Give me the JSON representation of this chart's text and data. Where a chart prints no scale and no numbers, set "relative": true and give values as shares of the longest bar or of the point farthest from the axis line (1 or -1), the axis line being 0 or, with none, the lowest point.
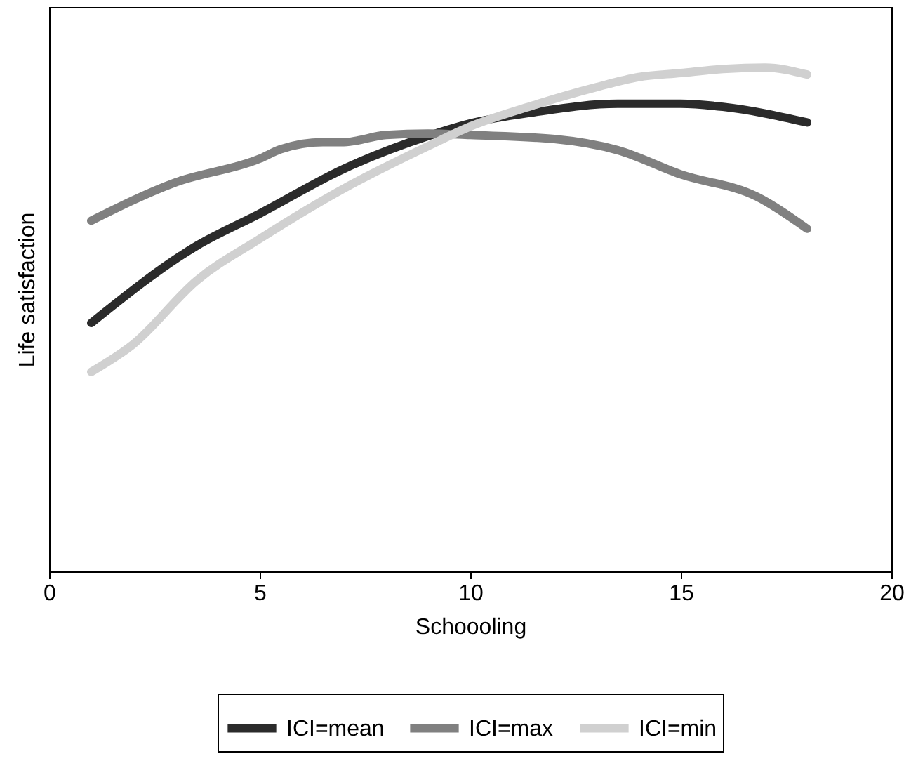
{
  "chart_data": {
    "type": "line",
    "xlabel": "Schoooling",
    "ylabel": "Life satisfaction",
    "relative": true,
    "xlim": [
      0,
      20
    ],
    "xticks": [
      0,
      5,
      10,
      15,
      20
    ],
    "grid": false,
    "legend": "bottom",
    "marker": "none",
    "line_style": "solid",
    "series": [
      {
        "name": "ICI=mean",
        "color": "#2b2b2b",
        "x": [
          1,
          3.5,
          5,
          7,
          9,
          10,
          11.5,
          13.5,
          15,
          16,
          18
        ],
        "values": [
          0.493,
          0.646,
          0.71,
          0.799,
          0.864,
          0.889,
          0.911,
          0.928,
          0.928,
          0.922,
          0.891
        ]
      },
      {
        "name": "ICI=max",
        "color": "#808080",
        "x": [
          1,
          3,
          5,
          5.5,
          6.5,
          7,
          8,
          9,
          10,
          12,
          13.5,
          15,
          16.8,
          18
        ],
        "values": [
          0.696,
          0.772,
          0.819,
          0.838,
          0.852,
          0.852,
          0.866,
          0.869,
          0.866,
          0.858,
          0.836,
          0.788,
          0.744,
          0.68
        ]
      },
      {
        "name": "ICI=min",
        "color": "#d0d0d0",
        "x": [
          1,
          2,
          3.5,
          5,
          7,
          9,
          10,
          11.5,
          13,
          14,
          15,
          16,
          17,
          18
        ],
        "values": [
          0.396,
          0.451,
          0.577,
          0.66,
          0.76,
          0.844,
          0.883,
          0.925,
          0.961,
          0.981,
          0.989,
          0.997,
          1,
          0.986
        ]
      }
    ]
  }
}
